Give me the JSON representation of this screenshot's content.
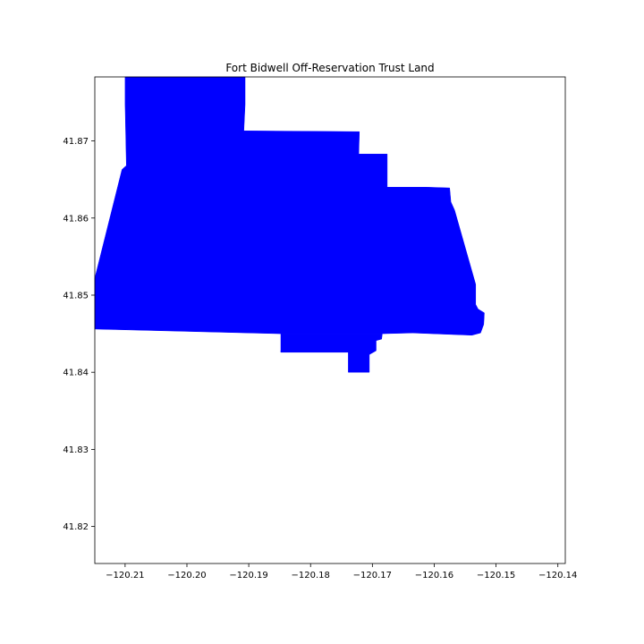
{
  "chart_data": {
    "type": "map",
    "title": "Fort Bidwell Off-Reservation Trust Land",
    "xlabel": "",
    "ylabel": "",
    "xlim": [
      -120.2149,
      -120.1388
    ],
    "ylim": [
      41.8152,
      41.8783
    ],
    "grid": false,
    "legend": "none",
    "fill_color": "#0000ff",
    "x_ticks": [
      -120.21,
      -120.2,
      -120.19,
      -120.18,
      -120.17,
      -120.16,
      -120.15,
      -120.14
    ],
    "x_tick_labels": [
      "−120.21",
      "−120.20",
      "−120.19",
      "−120.18",
      "−120.17",
      "−120.16",
      "−120.15",
      "−120.14"
    ],
    "y_ticks": [
      41.82,
      41.83,
      41.84,
      41.85,
      41.86,
      41.87
    ],
    "y_tick_labels": [
      "41.82",
      "41.83",
      "41.84",
      "41.85",
      "41.86",
      "41.87"
    ],
    "polygons": [
      [
        [
          -120.21,
          41.8783
        ],
        [
          -120.1906,
          41.8783
        ],
        [
          -120.1906,
          41.8747
        ],
        [
          -120.1908,
          41.8713
        ],
        [
          -120.1721,
          41.8712
        ],
        [
          -120.1722,
          41.8683
        ],
        [
          -120.1676,
          41.8683
        ],
        [
          -120.1676,
          41.864
        ],
        [
          -120.1612,
          41.864
        ],
        [
          -120.1575,
          41.8639
        ],
        [
          -120.1573,
          41.8621
        ],
        [
          -120.1567,
          41.861
        ],
        [
          -120.1533,
          41.8514
        ],
        [
          -120.1533,
          41.8488
        ],
        [
          -120.1529,
          41.8482
        ],
        [
          -120.1519,
          41.8477
        ],
        [
          -120.152,
          41.8462
        ],
        [
          -120.1525,
          41.8451
        ],
        [
          -120.1539,
          41.8448
        ],
        [
          -120.1635,
          41.8451
        ],
        [
          -120.1684,
          41.845
        ],
        [
          -120.1848,
          41.845
        ],
        [
          -120.1947,
          41.8452
        ],
        [
          -120.2149,
          41.8456
        ],
        [
          -120.2149,
          41.8522
        ],
        [
          -120.2105,
          41.8663
        ],
        [
          -120.2098,
          41.8668
        ],
        [
          -120.21,
          41.8747
        ]
      ],
      [
        [
          -120.1848,
          41.845
        ],
        [
          -120.1684,
          41.845
        ],
        [
          -120.1685,
          41.8443
        ],
        [
          -120.1694,
          41.8441
        ],
        [
          -120.1694,
          41.8428
        ],
        [
          -120.1705,
          41.8423
        ],
        [
          -120.1705,
          41.8426
        ],
        [
          -120.1848,
          41.8426
        ]
      ],
      [
        [
          -120.1848,
          41.8426
        ],
        [
          -120.1705,
          41.8426
        ],
        [
          -120.1705,
          41.84
        ],
        [
          -120.1739,
          41.84
        ],
        [
          -120.1739,
          41.8428
        ],
        [
          -120.1848,
          41.8428
        ]
      ]
    ]
  }
}
